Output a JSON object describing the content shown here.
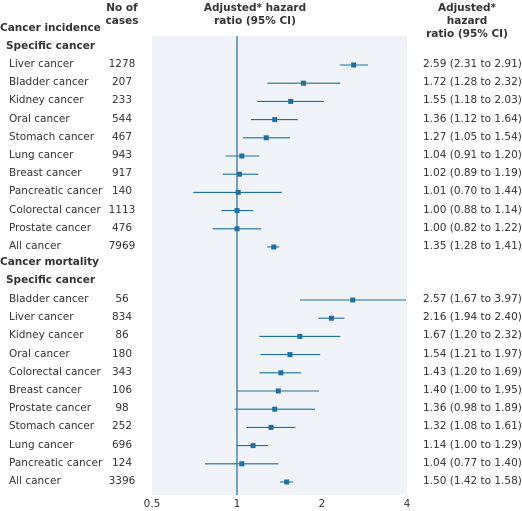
{
  "headers": {
    "cases_line1": "No of",
    "cases_line2": "cases",
    "hr_line1": "Adjusted* hazard",
    "hr_line2": "ratio (95% CI)",
    "ci_line1": "Adjusted* hazard",
    "ci_line2": "ratio (95% CI)"
  },
  "colors": {
    "accent": "#1f6f9f",
    "panel": "#f0f3f7",
    "text": "#333333"
  },
  "chart_data": {
    "type": "forest",
    "x_scale": "log",
    "xlim": [
      0.5,
      4
    ],
    "reference_line": 1,
    "x_ticks": [
      0.5,
      1,
      2,
      4
    ],
    "sections": [
      {
        "title": "Cancer incidence",
        "subtitle": "Specific cancer",
        "rows": [
          {
            "label": "Liver cancer",
            "n": "1278",
            "hr": 2.59,
            "lo": 2.31,
            "hi": 2.91,
            "ci_text": "2.59 (2.31 to 2.91)"
          },
          {
            "label": "Bladder cancer",
            "n": "207",
            "hr": 1.72,
            "lo": 1.28,
            "hi": 2.32,
            "ci_text": "1.72 (1.28 to 2.32)"
          },
          {
            "label": "Kidney cancer",
            "n": "233",
            "hr": 1.55,
            "lo": 1.18,
            "hi": 2.03,
            "ci_text": "1.55 (1.18 to 2.03)"
          },
          {
            "label": "Oral cancer",
            "n": "544",
            "hr": 1.36,
            "lo": 1.12,
            "hi": 1.64,
            "ci_text": "1.36 (1.12 to 1.64)"
          },
          {
            "label": "Stomach cancer",
            "n": "467",
            "hr": 1.27,
            "lo": 1.05,
            "hi": 1.54,
            "ci_text": "1.27 (1.05 to 1.54)"
          },
          {
            "label": "Lung cancer",
            "n": "943",
            "hr": 1.04,
            "lo": 0.91,
            "hi": 1.2,
            "ci_text": "1.04 (0.91 to 1.20)"
          },
          {
            "label": "Breast cancer",
            "n": "917",
            "hr": 1.02,
            "lo": 0.89,
            "hi": 1.19,
            "ci_text": "1.02 (0.89 to 1.19)"
          },
          {
            "label": "Pancreatic cancer",
            "n": "140",
            "hr": 1.01,
            "lo": 0.7,
            "hi": 1.44,
            "ci_text": "1.01 (0.70 to 1.44)"
          },
          {
            "label": "Colorectal cancer",
            "n": "1113",
            "hr": 1.0,
            "lo": 0.88,
            "hi": 1.14,
            "ci_text": "1.00 (0.88 to 1.14)"
          },
          {
            "label": "Prostate cancer",
            "n": "476",
            "hr": 1.0,
            "lo": 0.82,
            "hi": 1.22,
            "ci_text": "1.00 (0.82 to 1.22)"
          },
          {
            "label": "All cancer",
            "n": "7969",
            "hr": 1.35,
            "lo": 1.28,
            "hi": 1.41,
            "ci_text": "1.35 (1.28 to 1.41)"
          }
        ]
      },
      {
        "title": "Cancer mortality",
        "subtitle": "Specific cancer",
        "rows": [
          {
            "label": "Bladder cancer",
            "n": "56",
            "hr": 2.57,
            "lo": 1.67,
            "hi": 3.97,
            "ci_text": "2.57 (1.67 to 3.97)"
          },
          {
            "label": "Liver cancer",
            "n": "834",
            "hr": 2.16,
            "lo": 1.94,
            "hi": 2.4,
            "ci_text": "2.16 (1.94 to 2.40)"
          },
          {
            "label": "Kidney cancer",
            "n": "86",
            "hr": 1.67,
            "lo": 1.2,
            "hi": 2.32,
            "ci_text": "1.67 (1.20 to 2.32)"
          },
          {
            "label": "Oral cancer",
            "n": "180",
            "hr": 1.54,
            "lo": 1.21,
            "hi": 1.97,
            "ci_text": "1.54 (1.21 to 1.97)"
          },
          {
            "label": "Colorectal cancer",
            "n": "343",
            "hr": 1.43,
            "lo": 1.2,
            "hi": 1.69,
            "ci_text": "1.43 (1.20 to 1.69)"
          },
          {
            "label": "Breast cancer",
            "n": "106",
            "hr": 1.4,
            "lo": 1.0,
            "hi": 1.95,
            "ci_text": "1.40 (1.00 to 1.95)"
          },
          {
            "label": "Prostate cancer",
            "n": "98",
            "hr": 1.36,
            "lo": 0.98,
            "hi": 1.89,
            "ci_text": "1.36 (0.98 to 1.89)"
          },
          {
            "label": "Stomach cancer",
            "n": "252",
            "hr": 1.32,
            "lo": 1.08,
            "hi": 1.61,
            "ci_text": "1.32 (1.08 to 1.61)"
          },
          {
            "label": "Lung cancer",
            "n": "696",
            "hr": 1.14,
            "lo": 1.0,
            "hi": 1.29,
            "ci_text": "1.14 (1.00 to 1.29)"
          },
          {
            "label": "Pancreatic cancer",
            "n": "124",
            "hr": 1.04,
            "lo": 0.77,
            "hi": 1.4,
            "ci_text": "1.04 (0.77 to 1.40)"
          },
          {
            "label": "All cancer",
            "n": "3396",
            "hr": 1.5,
            "lo": 1.42,
            "hi": 1.58,
            "ci_text": "1.50 (1.42 to 1.58)"
          }
        ]
      }
    ]
  }
}
